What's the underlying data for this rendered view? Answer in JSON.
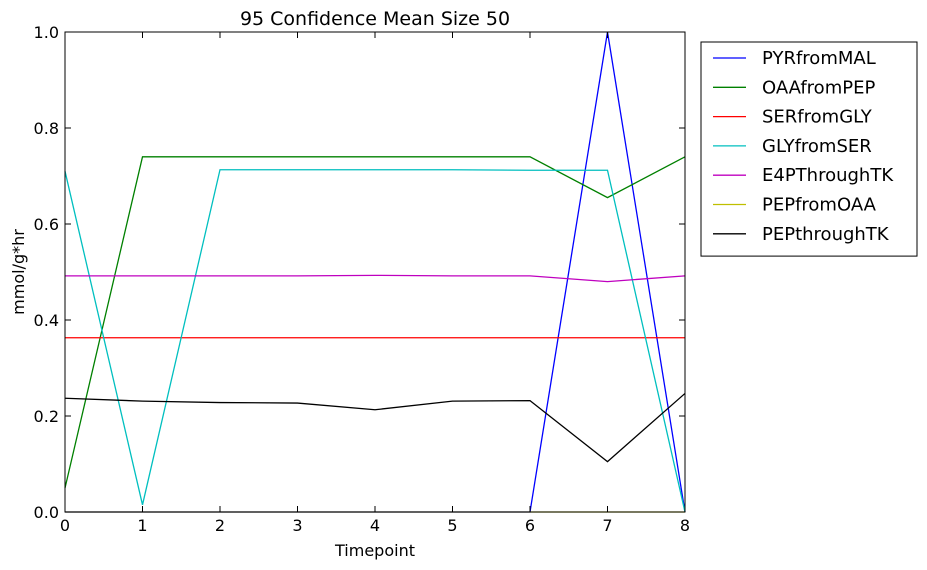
{
  "chart_data": {
    "type": "line",
    "title": "95 Confidence Mean Size 50",
    "xlabel": "Timepoint",
    "ylabel": "mmol/g*hr",
    "xlim": [
      0,
      8
    ],
    "ylim": [
      0.0,
      1.0
    ],
    "x": [
      0,
      1,
      2,
      3,
      4,
      5,
      6,
      7,
      8
    ],
    "x_tick_labels": [
      "0",
      "1",
      "2",
      "3",
      "4",
      "5",
      "6",
      "7",
      "8"
    ],
    "y_ticks": [
      0.0,
      0.2,
      0.4,
      0.6,
      0.8,
      1.0
    ],
    "y_tick_labels": [
      "0.0",
      "0.2",
      "0.4",
      "0.6",
      "0.8",
      "1.0"
    ],
    "grid": false,
    "legend_position": "outside-right-top",
    "series": [
      {
        "name": "PYRfromMAL",
        "color": "#0000ff",
        "values": [
          0.0,
          0.0,
          0.0,
          0.0,
          0.0,
          0.0,
          0.0,
          1.0,
          0.0
        ]
      },
      {
        "name": "OAAfromPEP",
        "color": "#008000",
        "values": [
          0.05,
          0.74,
          0.74,
          0.74,
          0.74,
          0.74,
          0.74,
          0.655,
          0.74
        ]
      },
      {
        "name": "SERfromGLY",
        "color": "#ff0000",
        "values": [
          0.363,
          0.363,
          0.363,
          0.363,
          0.363,
          0.363,
          0.363,
          0.363,
          0.363
        ]
      },
      {
        "name": "GLYfromSER",
        "color": "#00bfbf",
        "values": [
          0.71,
          0.015,
          0.713,
          0.713,
          0.713,
          0.713,
          0.712,
          0.712,
          0.0
        ]
      },
      {
        "name": "E4PThroughTK",
        "color": "#bf00bf",
        "values": [
          0.492,
          0.492,
          0.492,
          0.492,
          0.493,
          0.492,
          0.492,
          0.48,
          0.492
        ]
      },
      {
        "name": "PEPfromOAA",
        "color": "#bfbf00",
        "values": [
          0.0,
          0.0,
          0.0,
          0.0,
          0.0,
          0.0,
          0.0,
          0.0,
          0.0
        ]
      },
      {
        "name": "PEPthroughTK",
        "color": "#000000",
        "values": [
          0.237,
          0.231,
          0.228,
          0.227,
          0.213,
          0.231,
          0.232,
          0.105,
          0.247
        ]
      }
    ]
  }
}
